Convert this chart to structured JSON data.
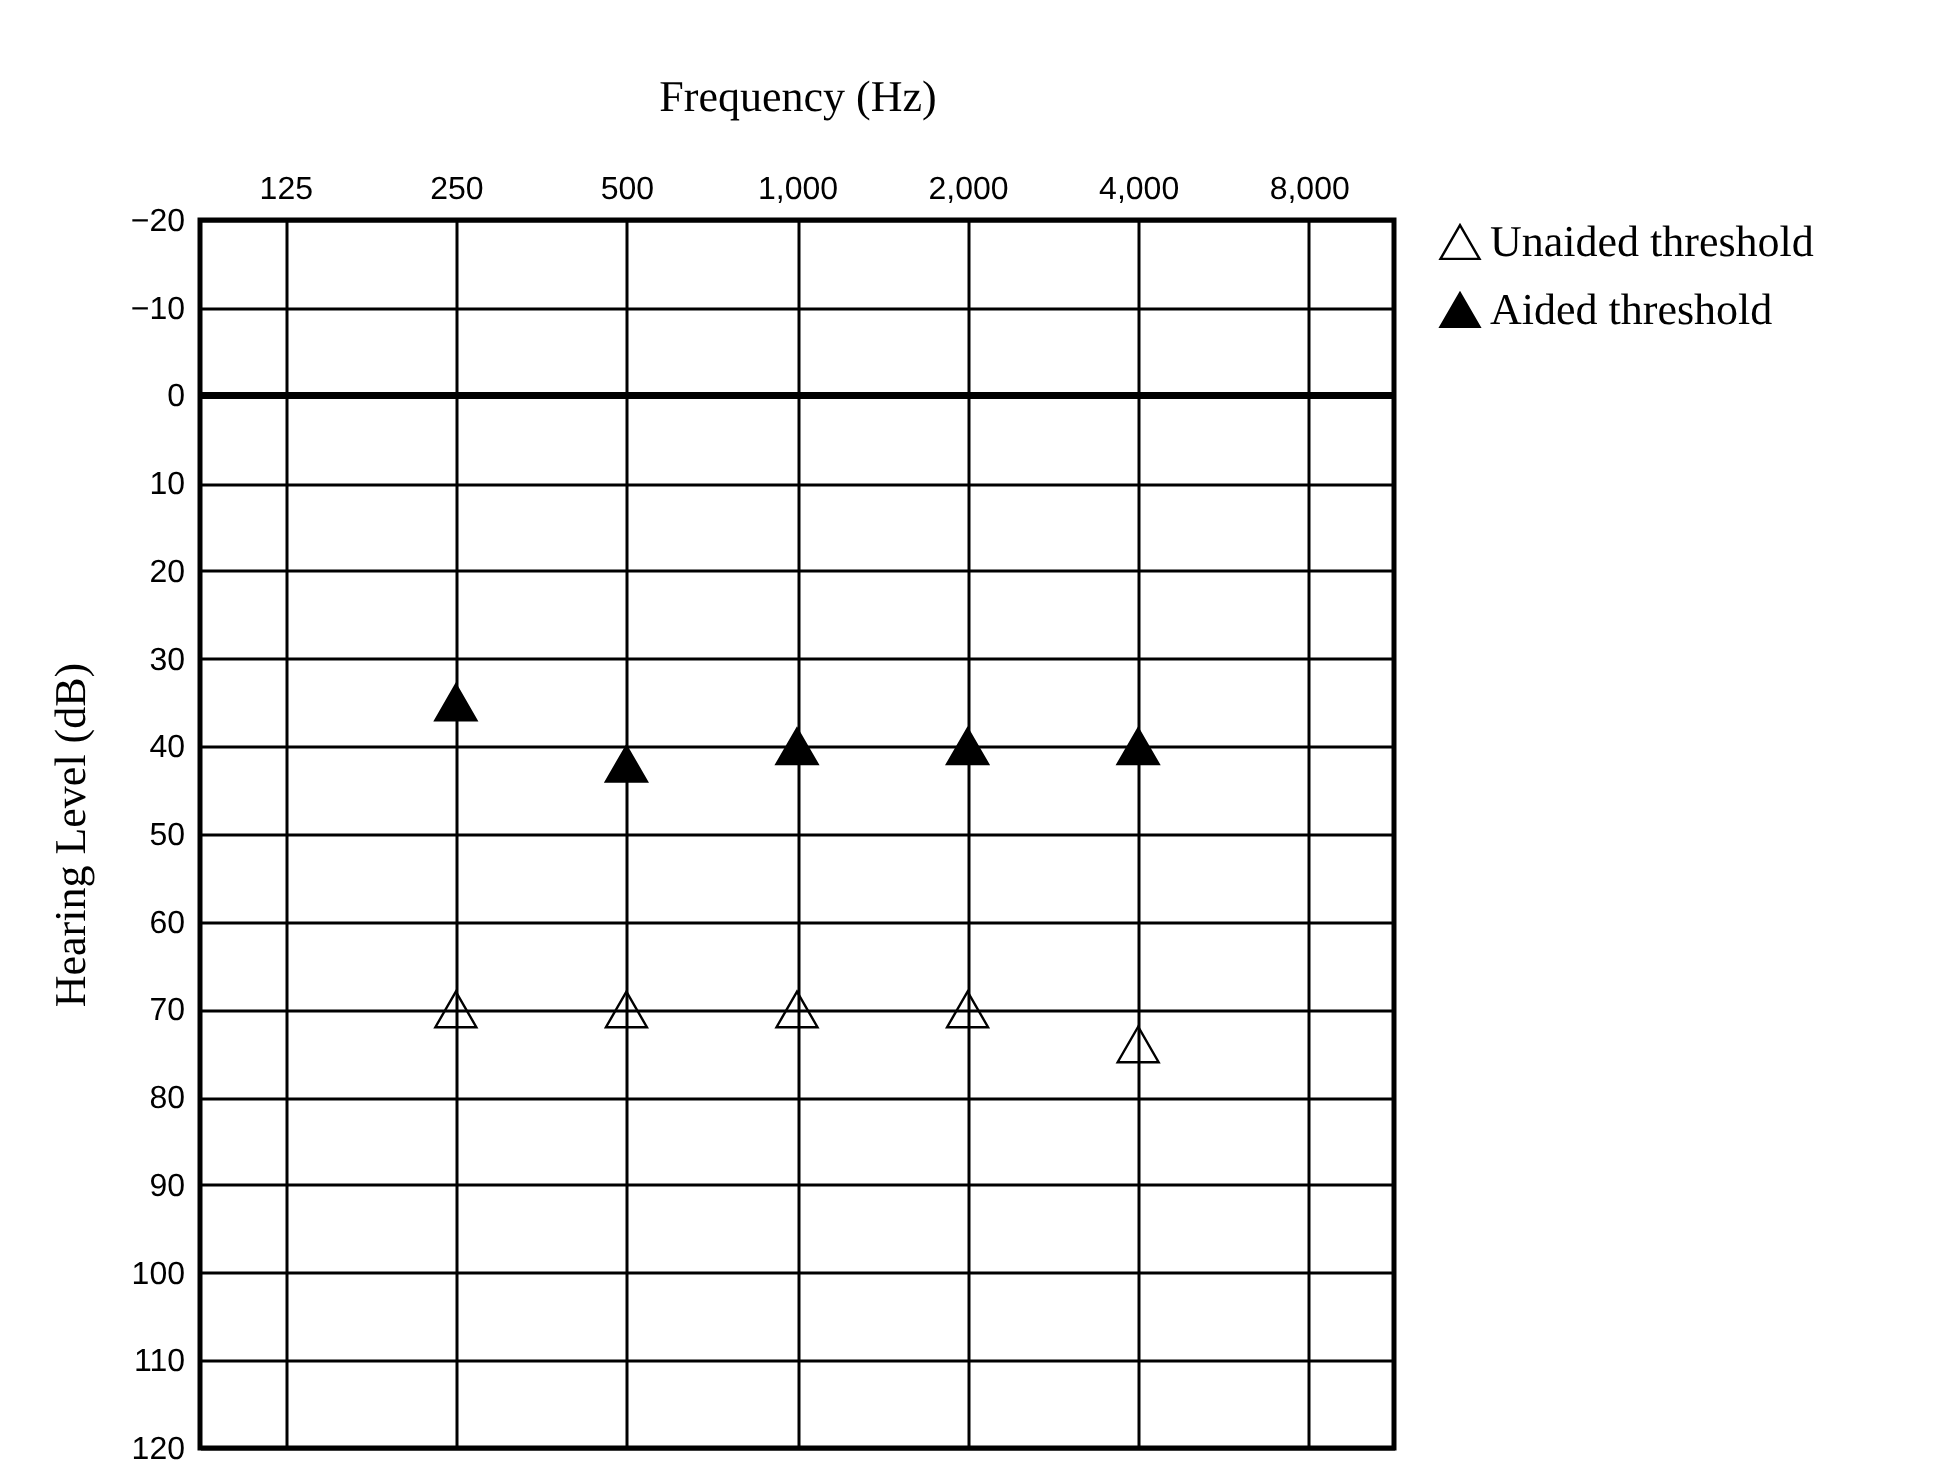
{
  "chart_data": {
    "type": "scatter",
    "xlabel": "Frequency (Hz)",
    "ylabel": "Hearing Level (dB)",
    "categories": [
      "125",
      "250",
      "500",
      "1,000",
      "2,000",
      "4,000",
      "8,000"
    ],
    "series": [
      {
        "name": "Unaided threshold",
        "color": "#000000",
        "values": [
          null,
          70,
          70,
          70,
          70,
          74,
          null
        ]
      },
      {
        "name": "Aided threshold",
        "color": "#000000",
        "values": [
          null,
          35,
          42,
          40,
          40,
          40,
          null
        ]
      }
    ],
    "ylim": [
      120,
      -20
    ],
    "yticks": [
      -20,
      -10,
      0,
      10,
      20,
      30,
      40,
      50,
      60,
      70,
      80,
      90,
      100,
      110,
      120
    ],
    "ref_lines": [
      {
        "axis": "y",
        "value": 0
      }
    ],
    "grid": true,
    "legend": "top right",
    "marker": "triangle"
  }
}
